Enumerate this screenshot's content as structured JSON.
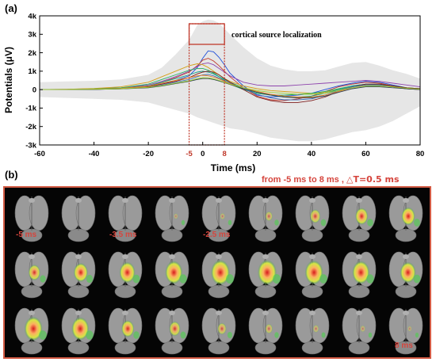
{
  "panel_a_label": "(a)",
  "panel_b_label": "(b)",
  "chart_data": {
    "type": "line",
    "title": "",
    "xlabel": "Time (ms)",
    "ylabel": "Potentials (μV)",
    "xlim": [
      -60,
      80
    ],
    "ylim": [
      -3000,
      4000
    ],
    "x_ticks": [
      -60,
      -40,
      -20,
      0,
      20,
      40,
      60,
      80
    ],
    "x_tick_labels": [
      "-60",
      "-40",
      "-20",
      "",
      "20",
      "40",
      "60",
      "80"
    ],
    "x_highlight_ticks": [
      -5,
      8
    ],
    "x_highlight_tick_labels": [
      "-5",
      "8"
    ],
    "x_zero_label": "0",
    "y_ticks": [
      -3000,
      -2000,
      -1000,
      0,
      1000,
      2000,
      3000,
      4000
    ],
    "y_tick_labels": [
      "-3k",
      "-2k",
      "-1k",
      "0",
      "1k",
      "2k",
      "3k",
      "4k"
    ],
    "grid": false,
    "legend": "none",
    "annotation": "cortical source localization",
    "highlight_window": [
      -5,
      8
    ],
    "highlight_color": "#c0392b",
    "envelope_color": "#e6e6e6",
    "x": [
      -60,
      -50,
      -40,
      -30,
      -20,
      -15,
      -10,
      -5,
      -2,
      0,
      2,
      4,
      6,
      8,
      10,
      15,
      20,
      25,
      30,
      35,
      40,
      45,
      50,
      55,
      60,
      65,
      70,
      75,
      80
    ],
    "envelope_upper": [
      400,
      450,
      480,
      550,
      800,
      1200,
      1900,
      2700,
      3500,
      3700,
      3800,
      3750,
      3600,
      3300,
      3000,
      2300,
      1700,
      1300,
      1100,
      1000,
      1000,
      1050,
      1250,
      1450,
      1500,
      1300,
      1050,
      850,
      600
    ],
    "envelope_lower": [
      -400,
      -450,
      -500,
      -550,
      -700,
      -900,
      -1100,
      -1300,
      -1500,
      -1600,
      -1700,
      -1800,
      -1900,
      -2000,
      -2100,
      -2200,
      -2400,
      -2600,
      -2700,
      -2800,
      -2800,
      -2700,
      -2500,
      -2300,
      -2200,
      -2000,
      -1700,
      -1300,
      -900
    ],
    "series": [
      {
        "color": "#1f4fd8",
        "values": [
          0,
          0,
          20,
          50,
          150,
          300,
          500,
          750,
          1200,
          1700,
          2100,
          2050,
          1750,
          1350,
          900,
          200,
          -300,
          -400,
          -350,
          -300,
          -200,
          0,
          200,
          350,
          450,
          400,
          250,
          100,
          50
        ]
      },
      {
        "color": "#c0392b",
        "values": [
          0,
          10,
          30,
          80,
          200,
          400,
          650,
          950,
          1300,
          1600,
          1700,
          1550,
          1300,
          1000,
          700,
          100,
          -350,
          -550,
          -600,
          -500,
          -350,
          -100,
          150,
          300,
          400,
          350,
          200,
          80,
          30
        ]
      },
      {
        "color": "#8e44ad",
        "values": [
          0,
          20,
          50,
          100,
          250,
          450,
          700,
          1000,
          1250,
          1400,
          1450,
          1350,
          1150,
          950,
          750,
          400,
          250,
          200,
          200,
          250,
          300,
          350,
          400,
          450,
          500,
          450,
          350,
          250,
          150
        ]
      },
      {
        "color": "#d4a017",
        "values": [
          0,
          20,
          60,
          150,
          400,
          700,
          1000,
          1300,
          1400,
          1350,
          1200,
          1000,
          800,
          600,
          450,
          200,
          50,
          -50,
          -100,
          -150,
          -200,
          -150,
          0,
          150,
          250,
          250,
          200,
          100,
          50
        ]
      },
      {
        "color": "#27ae60",
        "values": [
          0,
          10,
          40,
          100,
          300,
          550,
          800,
          1050,
          1150,
          1150,
          1050,
          900,
          700,
          500,
          300,
          0,
          -200,
          -300,
          -300,
          -250,
          -200,
          -100,
          50,
          200,
          300,
          300,
          200,
          100,
          50
        ]
      },
      {
        "color": "#16a085",
        "values": [
          0,
          0,
          20,
          60,
          200,
          400,
          600,
          800,
          950,
          1000,
          950,
          850,
          700,
          550,
          400,
          100,
          -150,
          -300,
          -400,
          -400,
          -350,
          -200,
          0,
          200,
          300,
          250,
          150,
          50,
          0
        ]
      },
      {
        "color": "#7f1d1d",
        "values": [
          0,
          0,
          10,
          50,
          150,
          300,
          450,
          650,
          850,
          950,
          1000,
          950,
          800,
          600,
          400,
          0,
          -400,
          -600,
          -700,
          -700,
          -600,
          -400,
          -100,
          150,
          300,
          300,
          200,
          100,
          50
        ]
      },
      {
        "color": "#3f6fb5",
        "values": [
          0,
          0,
          10,
          40,
          120,
          250,
          400,
          550,
          700,
          800,
          820,
          750,
          620,
          480,
          350,
          50,
          -250,
          -450,
          -550,
          -550,
          -500,
          -300,
          -50,
          150,
          250,
          250,
          150,
          50,
          0
        ]
      },
      {
        "color": "#e67e22",
        "values": [
          0,
          10,
          30,
          70,
          180,
          350,
          500,
          650,
          750,
          780,
          750,
          680,
          580,
          450,
          320,
          100,
          -100,
          -250,
          -350,
          -400,
          -400,
          -300,
          -100,
          100,
          200,
          200,
          150,
          50,
          0
        ]
      },
      {
        "color": "#2c3e50",
        "values": [
          0,
          0,
          10,
          40,
          100,
          200,
          330,
          450,
          550,
          600,
          600,
          550,
          470,
          380,
          280,
          50,
          -150,
          -300,
          -400,
          -450,
          -450,
          -350,
          -150,
          50,
          150,
          150,
          100,
          50,
          0
        ]
      },
      {
        "color": "#9acd32",
        "values": [
          0,
          10,
          20,
          50,
          120,
          220,
          350,
          480,
          600,
          650,
          640,
          580,
          500,
          400,
          300,
          100,
          -50,
          -150,
          -200,
          -250,
          -250,
          -200,
          -50,
          100,
          200,
          200,
          150,
          80,
          30
        ]
      }
    ]
  },
  "panel_b": {
    "header": "from -5 ms to 8 ms ,",
    "delta": "△T=0.5 ms",
    "labels": [
      "-5 ms",
      "-3.5 ms",
      "-2.5 ms",
      "8 ms"
    ],
    "colors": {
      "background": "#050505",
      "border": "#d25a44",
      "label": "#d6453d",
      "brain": "#9a9a9a"
    },
    "rows": [
      [
        0,
        0,
        0,
        0.05,
        0.1,
        0.25,
        0.45,
        0.6,
        0.65
      ],
      [
        0.55,
        0.7,
        0.8,
        0.9,
        1.0,
        1.0,
        0.95,
        0.9,
        0.8
      ],
      [
        0.95,
        0.9,
        0.6,
        0.5,
        0.35,
        0.25,
        0.15,
        0.1,
        0.05
      ]
    ]
  }
}
